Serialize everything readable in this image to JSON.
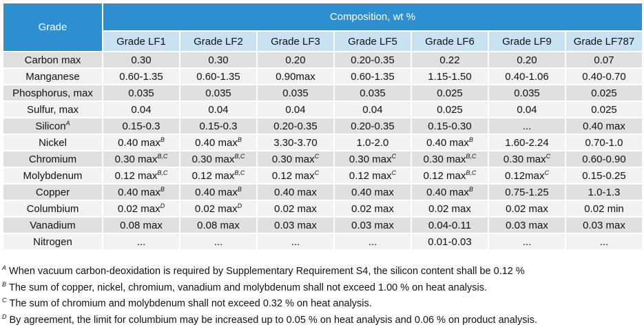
{
  "table": {
    "grade_header": "Grade",
    "composition_header": "Composition, wt %",
    "grades": [
      "Grade LF1",
      "Grade LF2",
      "Grade LF3",
      "Grade LF5",
      "Grade LF6",
      "Grade LF9",
      "Grade LF787"
    ],
    "rows": [
      {
        "element": "Carbon max",
        "mark": "",
        "cells": [
          {
            "v": "0.30",
            "n": ""
          },
          {
            "v": "0.30",
            "n": ""
          },
          {
            "v": "0.20",
            "n": ""
          },
          {
            "v": "0.20-0.35",
            "n": ""
          },
          {
            "v": "0.22",
            "n": ""
          },
          {
            "v": "0.20",
            "n": ""
          },
          {
            "v": "0.07",
            "n": ""
          }
        ]
      },
      {
        "element": "Manganese",
        "mark": "",
        "cells": [
          {
            "v": "0.60-1.35",
            "n": ""
          },
          {
            "v": "0.60-1.35",
            "n": ""
          },
          {
            "v": "0.90max",
            "n": ""
          },
          {
            "v": "0.60-1.35",
            "n": ""
          },
          {
            "v": "1.15-1.50",
            "n": ""
          },
          {
            "v": "0.40-1.06",
            "n": ""
          },
          {
            "v": "0.40-0.70",
            "n": ""
          }
        ]
      },
      {
        "element": "Phosphorus, max",
        "mark": "",
        "cells": [
          {
            "v": "0.035",
            "n": ""
          },
          {
            "v": "0.035",
            "n": ""
          },
          {
            "v": "0.035",
            "n": ""
          },
          {
            "v": "0.035",
            "n": ""
          },
          {
            "v": "0.025",
            "n": ""
          },
          {
            "v": "0.035",
            "n": ""
          },
          {
            "v": "0.025",
            "n": ""
          }
        ]
      },
      {
        "element": "Sulfur, max",
        "mark": "",
        "cells": [
          {
            "v": "0.04",
            "n": ""
          },
          {
            "v": "0.04",
            "n": ""
          },
          {
            "v": "0.04",
            "n": ""
          },
          {
            "v": "0.04",
            "n": ""
          },
          {
            "v": "0.025",
            "n": ""
          },
          {
            "v": "0.04",
            "n": ""
          },
          {
            "v": "0.025",
            "n": ""
          }
        ]
      },
      {
        "element": "Silicon",
        "mark": "A",
        "cells": [
          {
            "v": "0.15-0.3",
            "n": ""
          },
          {
            "v": "0.15-0.3",
            "n": ""
          },
          {
            "v": "0.20-0.35",
            "n": ""
          },
          {
            "v": "0.20-0.35",
            "n": ""
          },
          {
            "v": "0.15-0.30",
            "n": ""
          },
          {
            "v": "...",
            "n": ""
          },
          {
            "v": "0.40 max",
            "n": ""
          }
        ]
      },
      {
        "element": "Nickel",
        "mark": "",
        "cells": [
          {
            "v": "0.40 max",
            "n": "B"
          },
          {
            "v": "0.40 max",
            "n": "B"
          },
          {
            "v": "3.30-3.70",
            "n": ""
          },
          {
            "v": "1.0-2.0",
            "n": ""
          },
          {
            "v": "0.40 max",
            "n": "B"
          },
          {
            "v": "1.60-2.24",
            "n": ""
          },
          {
            "v": "0.70-1.0",
            "n": ""
          }
        ]
      },
      {
        "element": "Chromium",
        "mark": "",
        "cells": [
          {
            "v": "0.30 max",
            "n": "B,C"
          },
          {
            "v": "0.30 max",
            "n": "B,C"
          },
          {
            "v": "0.30 max",
            "n": "C"
          },
          {
            "v": "0.30 max",
            "n": "C"
          },
          {
            "v": "0.30 max",
            "n": "B,C"
          },
          {
            "v": "0.30 max",
            "n": "C"
          },
          {
            "v": "0.60-0.90",
            "n": ""
          }
        ]
      },
      {
        "element": "Molybdenum",
        "mark": "",
        "cells": [
          {
            "v": "0.12 max",
            "n": "B,C"
          },
          {
            "v": "0.12 max",
            "n": "B,C"
          },
          {
            "v": "0.12 max",
            "n": "C"
          },
          {
            "v": "0.12 max",
            "n": "C"
          },
          {
            "v": "0.12 max",
            "n": "B,C"
          },
          {
            "v": "0.12max",
            "n": "C"
          },
          {
            "v": "0.15-0.25",
            "n": ""
          }
        ]
      },
      {
        "element": "Copper",
        "mark": "",
        "cells": [
          {
            "v": "0.40 max",
            "n": "B"
          },
          {
            "v": "0.40 max",
            "n": "B"
          },
          {
            "v": "0.40 max",
            "n": ""
          },
          {
            "v": "0.40 max",
            "n": ""
          },
          {
            "v": "0.40 max",
            "n": "B"
          },
          {
            "v": "0.75-1.25",
            "n": ""
          },
          {
            "v": "1.0-1.3",
            "n": ""
          }
        ]
      },
      {
        "element": "Columbium",
        "mark": "",
        "cells": [
          {
            "v": "0.02 max",
            "n": "D"
          },
          {
            "v": "0.02 max",
            "n": "D"
          },
          {
            "v": "0.02 max",
            "n": ""
          },
          {
            "v": "0.02 max",
            "n": ""
          },
          {
            "v": "0.02 max",
            "n": ""
          },
          {
            "v": "0.02 max",
            "n": ""
          },
          {
            "v": "0.02 min",
            "n": ""
          }
        ]
      },
      {
        "element": "Vanadium",
        "mark": "",
        "cells": [
          {
            "v": "0.08 max",
            "n": ""
          },
          {
            "v": "0.08 max",
            "n": ""
          },
          {
            "v": "0.03 max",
            "n": ""
          },
          {
            "v": "0.03 max",
            "n": ""
          },
          {
            "v": "0.04-0.11",
            "n": ""
          },
          {
            "v": "0.03 max",
            "n": ""
          },
          {
            "v": "0.03 max",
            "n": ""
          }
        ]
      },
      {
        "element": "Nitrogen",
        "mark": "",
        "cells": [
          {
            "v": "...",
            "n": ""
          },
          {
            "v": "...",
            "n": ""
          },
          {
            "v": "...",
            "n": ""
          },
          {
            "v": "...",
            "n": ""
          },
          {
            "v": "0.01-0.03",
            "n": ""
          },
          {
            "v": "...",
            "n": ""
          },
          {
            "v": "...",
            "n": ""
          }
        ]
      }
    ]
  },
  "footnotes": [
    {
      "mark": "A",
      "text": "When vacuum carbon-deoxidation is required by Supplementary Requirement S4, the silicon content shall be 0.12 %"
    },
    {
      "mark": "B",
      "text": "The sum of copper, nickel, chromium, vanadium and molybdenum shall not exceed 1.00 % on heat analysis."
    },
    {
      "mark": "C",
      "text": "The sum of chromium and molybdenum shall not exceed 0.32 % on heat analysis."
    },
    {
      "mark": "D",
      "text": "By agreement, the limit for columbium may be increased up to 0.05 % on heat analysis and 0.06 % on product analysis."
    }
  ],
  "colors": {
    "header_blue": "#2e8fd0",
    "subheader_blue": "#c8e1f3",
    "row_gray": "#e0e0e0",
    "row_light": "#f2f2f2"
  }
}
